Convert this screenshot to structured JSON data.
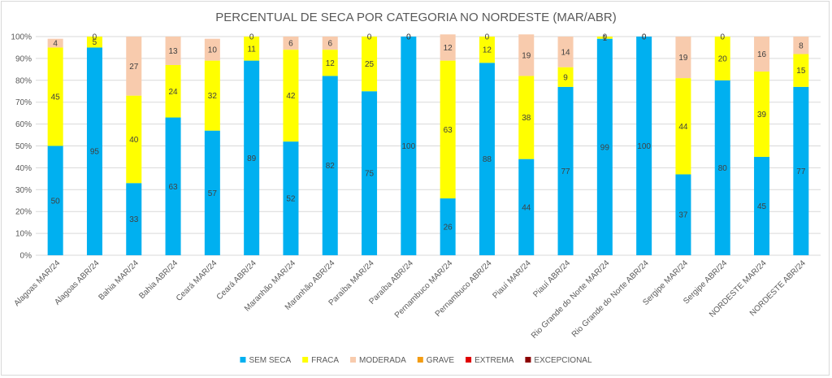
{
  "chart_data": {
    "type": "bar",
    "stacked": true,
    "percent": true,
    "title": "PERCENTUAL DE SECA POR CATEGORIA NO NORDESTE (MAR/ABR)",
    "xlabel": "",
    "ylabel": "",
    "ylim": [
      0,
      100
    ],
    "yticks": [
      "0%",
      "10%",
      "20%",
      "30%",
      "40%",
      "50%",
      "60%",
      "70%",
      "80%",
      "90%",
      "100%"
    ],
    "grid": true,
    "legend_position": "bottom",
    "categories": [
      "Alagoas MAR/24",
      "Alagoas ABR/24",
      "Bahia MAR/24",
      "Bahia ABR/24",
      "Ceará MAR/24",
      "Ceará ABR/24",
      "Maranhão MAR/24",
      "Maranhão ABR/24",
      "Paraíba MAR/24",
      "Paraíba ABR/24",
      "Pernambuco MAR/24",
      "Pernambuco ABR/24",
      "Piauí MAR/24",
      "Piauí ABR/24",
      "Rio Grande do Norte MAR/24",
      "Rio Grande do Norte ABR/24",
      "Sergipe MAR/24",
      "Sergipe ABR/24",
      "NORDESTE MAR/24",
      "NORDESTE ABR/24"
    ],
    "series": [
      {
        "name": "SEM SECA",
        "color": "#00b0f0",
        "values": [
          50,
          95,
          33,
          63,
          57,
          89,
          52,
          82,
          75,
          100,
          26,
          88,
          44,
          77,
          99,
          100,
          37,
          80,
          45,
          77
        ]
      },
      {
        "name": "FRACA",
        "color": "#ffff00",
        "values": [
          45,
          5,
          40,
          24,
          32,
          11,
          42,
          12,
          25,
          0,
          63,
          12,
          38,
          9,
          1,
          0,
          44,
          20,
          39,
          15
        ]
      },
      {
        "name": "MODERADA",
        "color": "#f8cbad",
        "values": [
          4,
          0,
          27,
          13,
          10,
          0,
          6,
          6,
          0,
          0,
          12,
          0,
          19,
          14,
          0,
          0,
          19,
          0,
          16,
          8
        ]
      },
      {
        "name": "GRAVE",
        "color": "#f39c12",
        "values": [
          0,
          0,
          0,
          0,
          0,
          0,
          0,
          0,
          0,
          0,
          0,
          0,
          0,
          0,
          0,
          0,
          0,
          0,
          0,
          0
        ]
      },
      {
        "name": "EXTREMA",
        "color": "#e00000",
        "values": [
          0,
          0,
          0,
          0,
          0,
          0,
          0,
          0,
          0,
          0,
          0,
          0,
          0,
          0,
          0,
          0,
          0,
          0,
          0,
          0
        ]
      },
      {
        "name": "EXCEPCIONAL",
        "color": "#8b0000",
        "values": [
          0,
          0,
          0,
          0,
          0,
          0,
          0,
          0,
          0,
          0,
          0,
          0,
          0,
          0,
          0,
          0,
          0,
          0,
          0,
          0
        ]
      }
    ]
  }
}
